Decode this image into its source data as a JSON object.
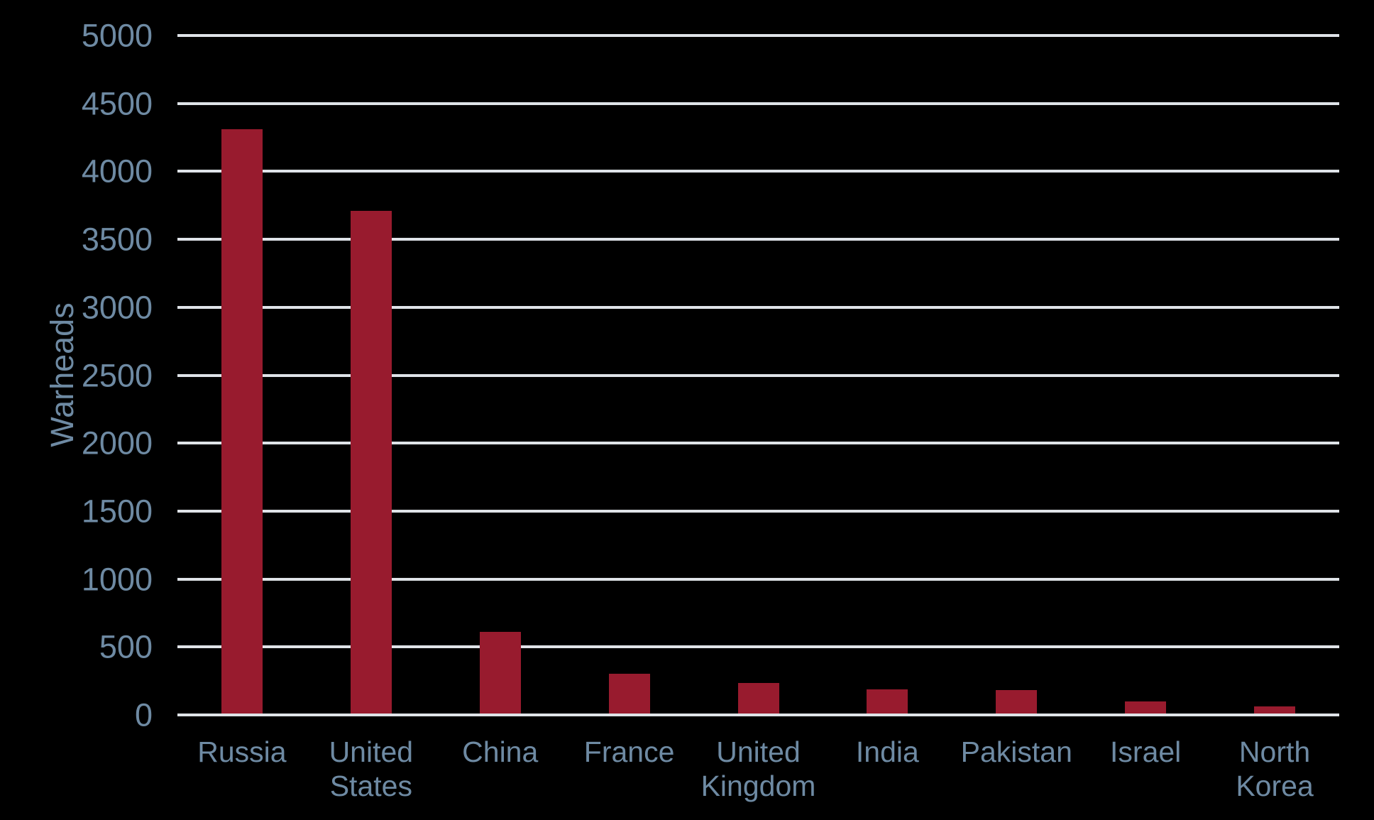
{
  "chart_data": {
    "type": "bar",
    "title": "",
    "xlabel": "",
    "ylabel": "Warheads",
    "categories": [
      "Russia",
      "United States",
      "China",
      "France",
      "United Kingdom",
      "India",
      "Pakistan",
      "Israel",
      "North Korea"
    ],
    "values": [
      4300,
      3700,
      600,
      290,
      225,
      180,
      170,
      90,
      50
    ],
    "ylim": [
      0,
      5000
    ],
    "yticks": [
      0,
      500,
      1000,
      1500,
      2000,
      2500,
      3000,
      3500,
      4000,
      4500,
      5000
    ],
    "grid": "horizontal",
    "legend": "none",
    "colors": {
      "background": "#000000",
      "bar": "#981B2E",
      "grid": "#DFE3E8",
      "axis_text": "#6E8AA3"
    }
  }
}
